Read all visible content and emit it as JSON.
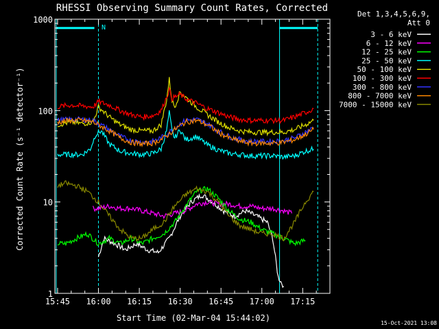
{
  "chart_data": {
    "type": "line",
    "title": "RHESSI Observing Summary Count Rates, Corrected",
    "xlabel": "Start Time (02-Mar-04 15:44:02)",
    "ylabel": "Corrected Count Rate (s⁻¹ detector⁻¹)",
    "y_scale": "log",
    "ylim": [
      1,
      1000
    ],
    "xlim_minutes_after_15_44": [
      0,
      101
    ],
    "x_ticks": [
      {
        "min": 1,
        "label": "15:45"
      },
      {
        "min": 16,
        "label": "16:00"
      },
      {
        "min": 31,
        "label": "16:15"
      },
      {
        "min": 46,
        "label": "16:30"
      },
      {
        "min": 61,
        "label": "16:45"
      },
      {
        "min": 76,
        "label": "17:00"
      },
      {
        "min": 91,
        "label": "17:15"
      }
    ],
    "y_ticks": [
      {
        "value": 1,
        "label": "1"
      },
      {
        "value": 10,
        "label": "10"
      },
      {
        "value": 100,
        "label": "100"
      },
      {
        "value": 1000,
        "label": "1000"
      }
    ],
    "legend": {
      "placement": "top-right",
      "header": [
        "Det 1,3,4,5,6,9,",
        "Att 0"
      ]
    },
    "annotations": {
      "date_stamp": "15-Oct-2021 13:08",
      "night_marker": "N"
    },
    "night_bars": [
      {
        "x_start": 0.5,
        "x_end": 14.5,
        "y": 800
      },
      {
        "x_start": 82.5,
        "x_end": 96.5,
        "y": 800
      }
    ],
    "saa_lines": [
      {
        "x": 0.5,
        "style": "solid"
      },
      {
        "x": 16,
        "style": "dashed"
      },
      {
        "x": 82.5,
        "style": "solid"
      },
      {
        "x": 96.5,
        "style": "dashed"
      }
    ],
    "series": [
      {
        "name": "3 - 6 keV",
        "color": "#ffffff",
        "x": [
          16,
          18,
          22,
          26,
          30,
          34,
          38,
          42,
          46,
          50,
          54,
          58,
          62,
          66,
          70,
          74,
          78,
          80,
          82,
          84
        ],
        "y": [
          2.5,
          4,
          3.5,
          3,
          3.5,
          3,
          2.8,
          4,
          7,
          10,
          12,
          10,
          8,
          7,
          8,
          7,
          6,
          4,
          1.5,
          1.2
        ]
      },
      {
        "name": "6 - 12 keV",
        "color": "#ff00ff",
        "x": [
          14,
          16,
          20,
          24,
          28,
          32,
          36,
          40,
          44,
          48,
          52,
          56,
          60,
          64,
          68,
          72,
          76,
          80,
          84,
          87
        ],
        "y": [
          8.5,
          8.5,
          9,
          8.5,
          8.5,
          8,
          7.5,
          7,
          7.5,
          8,
          9.5,
          10,
          9.5,
          9.5,
          9,
          9,
          8.5,
          8.5,
          8,
          7.5
        ]
      },
      {
        "name": "12 - 25 keV",
        "color": "#00ff00",
        "x": [
          1,
          4,
          8,
          12,
          16,
          20,
          24,
          28,
          32,
          36,
          40,
          44,
          48,
          52,
          56,
          60,
          64,
          68,
          72,
          76,
          80,
          84,
          88,
          92
        ],
        "y": [
          3.5,
          3.5,
          4,
          4.5,
          3.5,
          4,
          3.5,
          4,
          3.5,
          4,
          4.5,
          6,
          9,
          13,
          14,
          11,
          8,
          6.5,
          6,
          5,
          4.5,
          4,
          3.5,
          3.8
        ]
      },
      {
        "name": "25 - 50 keV",
        "color": "#00ffff",
        "x": [
          1,
          6,
          10,
          13,
          15,
          17,
          20,
          24,
          28,
          32,
          36,
          39,
          41,
          42,
          43,
          44,
          46,
          48,
          52,
          56,
          60,
          64,
          68,
          72,
          76,
          80,
          84,
          88,
          92,
          95
        ],
        "y": [
          33,
          33,
          33,
          38,
          55,
          60,
          43,
          36,
          34,
          33,
          34,
          38,
          60,
          95,
          60,
          50,
          62,
          48,
          52,
          42,
          37,
          34,
          33,
          32,
          32,
          32,
          31,
          32,
          36,
          38
        ]
      },
      {
        "name": "50 - 100 keV",
        "color": "#dddd00",
        "x": [
          1,
          6,
          10,
          14,
          16,
          20,
          24,
          28,
          32,
          36,
          39,
          41,
          42,
          43,
          44,
          46,
          48,
          52,
          56,
          60,
          64,
          68,
          72,
          76,
          80,
          84,
          88,
          92,
          95
        ],
        "y": [
          70,
          75,
          72,
          75,
          110,
          85,
          70,
          62,
          60,
          60,
          70,
          130,
          220,
          130,
          110,
          160,
          140,
          110,
          90,
          75,
          65,
          60,
          58,
          58,
          58,
          58,
          62,
          70,
          78
        ]
      },
      {
        "name": "100 - 300 keV",
        "color": "#ff0000",
        "x": [
          1,
          6,
          10,
          14,
          16,
          20,
          24,
          28,
          32,
          36,
          39,
          41,
          42,
          43,
          44,
          46,
          48,
          52,
          56,
          60,
          64,
          68,
          72,
          76,
          80,
          84,
          88,
          92,
          95
        ],
        "y": [
          110,
          115,
          112,
          110,
          125,
          115,
          100,
          90,
          85,
          88,
          100,
          140,
          170,
          135,
          140,
          150,
          135,
          120,
          105,
          95,
          85,
          80,
          78,
          78,
          78,
          78,
          85,
          95,
          105
        ]
      },
      {
        "name": "300 - 800 keV",
        "color": "#3333ff",
        "x": [
          1,
          6,
          10,
          14,
          16,
          20,
          24,
          28,
          32,
          36,
          40,
          44,
          48,
          52,
          56,
          60,
          64,
          68,
          72,
          76,
          80,
          84,
          88,
          92,
          95
        ],
        "y": [
          78,
          80,
          80,
          78,
          72,
          62,
          52,
          47,
          45,
          46,
          52,
          65,
          78,
          80,
          72,
          60,
          52,
          48,
          46,
          46,
          46,
          47,
          50,
          58,
          65
        ]
      },
      {
        "name": "800 - 7000 keV",
        "color": "#ff8800",
        "x": [
          1,
          6,
          10,
          14,
          16,
          20,
          24,
          28,
          32,
          36,
          40,
          44,
          48,
          52,
          56,
          60,
          64,
          68,
          72,
          76,
          80,
          84,
          88,
          92,
          95
        ],
        "y": [
          75,
          78,
          78,
          75,
          70,
          60,
          50,
          45,
          43,
          44,
          50,
          62,
          75,
          78,
          70,
          58,
          50,
          46,
          44,
          44,
          44,
          45,
          48,
          55,
          62
        ]
      },
      {
        "name": "7000 - 15000 keV",
        "color": "#888800",
        "x": [
          1,
          4,
          8,
          12,
          16,
          20,
          24,
          28,
          32,
          36,
          40,
          44,
          48,
          52,
          56,
          60,
          64,
          68,
          72,
          76,
          80,
          84,
          88,
          92,
          95
        ],
        "y": [
          15,
          16,
          15,
          13,
          10,
          7,
          5,
          4,
          4,
          5,
          6,
          9,
          12,
          14,
          13,
          10,
          7,
          5.5,
          5,
          4.5,
          4.5,
          4,
          6,
          10,
          13
        ]
      }
    ]
  }
}
